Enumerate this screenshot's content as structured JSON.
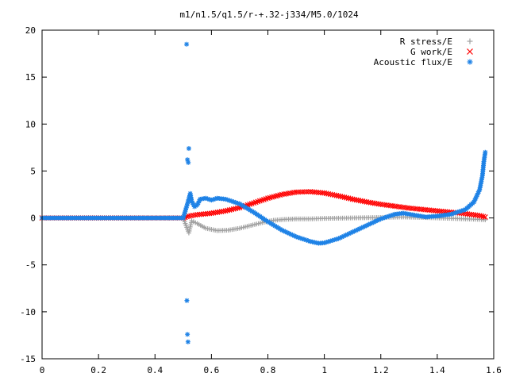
{
  "chart_data": {
    "type": "scatter",
    "title": "m1/n1.5/q1.5/r-+.32-j334/M5.0/1024",
    "xlabel": "",
    "ylabel": "",
    "xlim": [
      0,
      1.6
    ],
    "ylim": [
      -15,
      20
    ],
    "x_ticks": [
      "0",
      "0.2",
      "0.4",
      "0.6",
      "0.8",
      "1",
      "1.2",
      "1.4",
      "1.6"
    ],
    "y_ticks": [
      "20",
      "15",
      "10",
      "5",
      "0",
      "-5",
      "-10",
      "-15"
    ],
    "grid": false,
    "legend_position": "top-right",
    "series": [
      {
        "name": "R stress/E",
        "marker": "plus",
        "color": "#a0a0a0",
        "points": [
          [
            0.0,
            0.0
          ],
          [
            0.1,
            0.0
          ],
          [
            0.2,
            0.0
          ],
          [
            0.3,
            0.0
          ],
          [
            0.4,
            0.0
          ],
          [
            0.5,
            0.0
          ],
          [
            0.52,
            -1.6
          ],
          [
            0.53,
            -0.3
          ],
          [
            0.55,
            -0.6
          ],
          [
            0.58,
            -1.1
          ],
          [
            0.62,
            -1.35
          ],
          [
            0.66,
            -1.3
          ],
          [
            0.7,
            -1.1
          ],
          [
            0.74,
            -0.8
          ],
          [
            0.78,
            -0.5
          ],
          [
            0.82,
            -0.25
          ],
          [
            0.86,
            -0.15
          ],
          [
            0.9,
            -0.1
          ],
          [
            0.95,
            -0.1
          ],
          [
            1.0,
            -0.05
          ],
          [
            1.1,
            0.0
          ],
          [
            1.2,
            0.05
          ],
          [
            1.28,
            0.1
          ],
          [
            1.35,
            0.05
          ],
          [
            1.45,
            -0.05
          ],
          [
            1.5,
            -0.1
          ],
          [
            1.55,
            -0.15
          ],
          [
            1.57,
            -0.2
          ]
        ]
      },
      {
        "name": "G work/E",
        "marker": "cross",
        "color": "#ff0000",
        "points": [
          [
            0.0,
            0.0
          ],
          [
            0.1,
            0.0
          ],
          [
            0.2,
            0.0
          ],
          [
            0.3,
            0.0
          ],
          [
            0.4,
            0.0
          ],
          [
            0.5,
            0.0
          ],
          [
            0.52,
            0.2
          ],
          [
            0.55,
            0.35
          ],
          [
            0.6,
            0.5
          ],
          [
            0.65,
            0.75
          ],
          [
            0.7,
            1.1
          ],
          [
            0.75,
            1.6
          ],
          [
            0.8,
            2.1
          ],
          [
            0.85,
            2.5
          ],
          [
            0.9,
            2.75
          ],
          [
            0.95,
            2.8
          ],
          [
            1.0,
            2.65
          ],
          [
            1.05,
            2.35
          ],
          [
            1.1,
            2.0
          ],
          [
            1.15,
            1.7
          ],
          [
            1.2,
            1.45
          ],
          [
            1.25,
            1.25
          ],
          [
            1.3,
            1.05
          ],
          [
            1.35,
            0.9
          ],
          [
            1.4,
            0.75
          ],
          [
            1.45,
            0.6
          ],
          [
            1.5,
            0.45
          ],
          [
            1.55,
            0.25
          ],
          [
            1.57,
            0.1
          ]
        ]
      },
      {
        "name": "Acoustic flux/E",
        "marker": "star",
        "color": "#1e82e6",
        "points": [
          [
            0.0,
            0.0
          ],
          [
            0.05,
            0.0
          ],
          [
            0.1,
            0.0
          ],
          [
            0.15,
            0.0
          ],
          [
            0.2,
            0.0
          ],
          [
            0.25,
            0.0
          ],
          [
            0.3,
            0.0
          ],
          [
            0.35,
            0.0
          ],
          [
            0.4,
            0.0
          ],
          [
            0.45,
            0.0
          ],
          [
            0.5,
            0.0
          ],
          [
            0.512,
            18.5
          ],
          [
            0.515,
            6.2
          ],
          [
            0.518,
            5.9
          ],
          [
            0.52,
            7.4
          ],
          [
            0.513,
            -8.8
          ],
          [
            0.515,
            -12.4
          ],
          [
            0.517,
            -13.2
          ],
          [
            0.515,
            1.5
          ],
          [
            0.525,
            2.6
          ],
          [
            0.53,
            1.8
          ],
          [
            0.54,
            1.2
          ],
          [
            0.55,
            1.4
          ],
          [
            0.56,
            2.0
          ],
          [
            0.58,
            2.1
          ],
          [
            0.6,
            1.9
          ],
          [
            0.62,
            2.1
          ],
          [
            0.65,
            2.0
          ],
          [
            0.7,
            1.5
          ],
          [
            0.75,
            0.6
          ],
          [
            0.8,
            -0.4
          ],
          [
            0.85,
            -1.3
          ],
          [
            0.9,
            -2.0
          ],
          [
            0.95,
            -2.5
          ],
          [
            0.98,
            -2.7
          ],
          [
            1.0,
            -2.65
          ],
          [
            1.05,
            -2.2
          ],
          [
            1.1,
            -1.5
          ],
          [
            1.15,
            -0.8
          ],
          [
            1.2,
            -0.1
          ],
          [
            1.25,
            0.4
          ],
          [
            1.28,
            0.5
          ],
          [
            1.32,
            0.3
          ],
          [
            1.36,
            0.1
          ],
          [
            1.4,
            0.2
          ],
          [
            1.45,
            0.4
          ],
          [
            1.5,
            0.9
          ],
          [
            1.53,
            1.7
          ],
          [
            1.55,
            3.0
          ],
          [
            1.56,
            4.5
          ],
          [
            1.565,
            6.0
          ],
          [
            1.57,
            7.0
          ]
        ]
      }
    ]
  }
}
